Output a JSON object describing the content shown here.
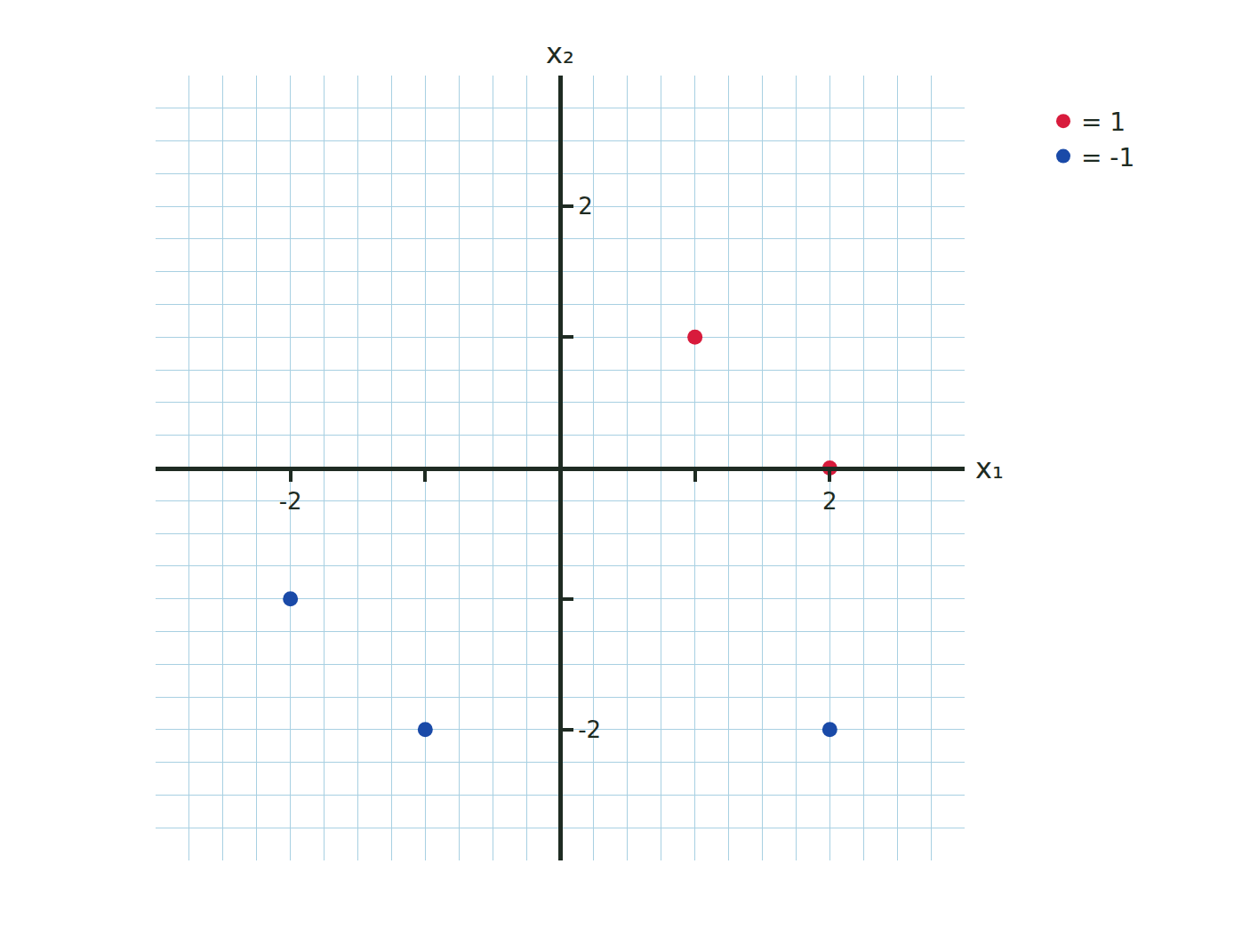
{
  "chart_data": {
    "type": "scatter",
    "series": [
      {
        "name": "= 1",
        "color": "#d81b3c",
        "x": [
          1,
          2
        ],
        "values": [
          1,
          0
        ]
      },
      {
        "name": "= -1",
        "color": "#1a4aa8",
        "x": [
          -2,
          -1,
          2
        ],
        "values": [
          -1,
          -2,
          -2
        ]
      }
    ],
    "x_label": "x₁",
    "y_label": "x₂",
    "xlim": [
      -3,
      3
    ],
    "ylim": [
      -3,
      3
    ],
    "xticks": [
      -2,
      {
        "value": -1,
        "label": null
      },
      {
        "value": 1,
        "label": null
      },
      2
    ],
    "yticks": [
      -2,
      {
        "value": -1,
        "label": null
      },
      {
        "value": 1,
        "label": null
      },
      2
    ],
    "grid": true,
    "legend": "top right",
    "marker": "circle"
  }
}
